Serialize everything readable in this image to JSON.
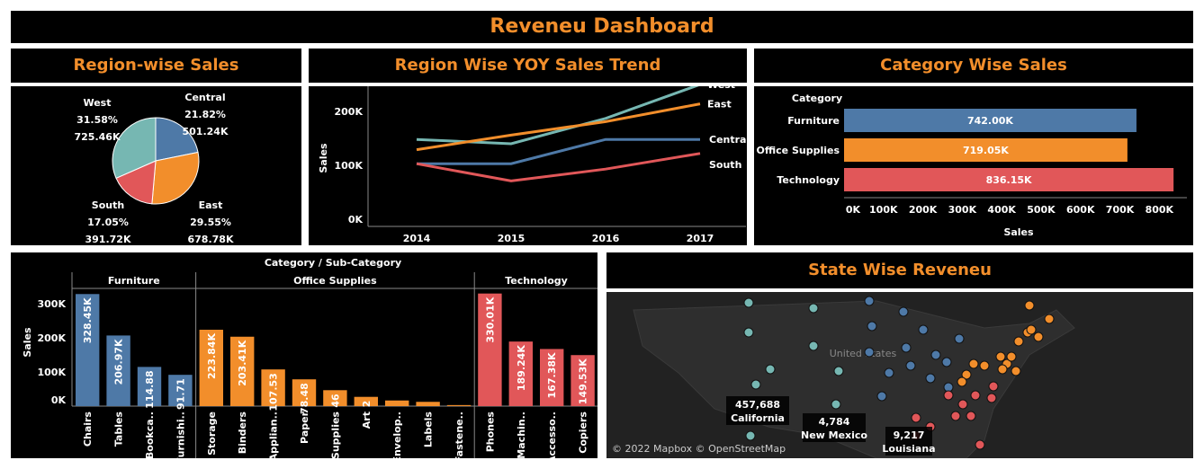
{
  "dashboard": {
    "title": "Reveneu Dashboard"
  },
  "colors": {
    "central": "#4e79a7",
    "east": "#f28e2b",
    "south": "#e15759",
    "west": "#76b7b2",
    "accent": "#f28e2b"
  },
  "region_pie": {
    "title": "Region-wise Sales",
    "chart_data": {
      "type": "pie",
      "slices": [
        {
          "name": "Central",
          "percent": "21.82%",
          "value": "501.24K",
          "share": 21.82
        },
        {
          "name": "East",
          "percent": "29.55%",
          "value": "678.78K",
          "share": 29.55
        },
        {
          "name": "South",
          "percent": "17.05%",
          "value": "391.72K",
          "share": 17.05
        },
        {
          "name": "West",
          "percent": "31.58%",
          "value": "725.46K",
          "share": 31.58
        }
      ]
    }
  },
  "yoy": {
    "title": "Region Wise YOY Sales Trend",
    "chart_data": {
      "type": "line",
      "x": [
        "2014",
        "2015",
        "2016",
        "2017"
      ],
      "ylabel": "Sales",
      "yticks": [
        "0K",
        "100K",
        "200K"
      ],
      "ylim": [
        0,
        260000
      ],
      "series": [
        {
          "name": "West",
          "values": [
            148000,
            140000,
            187000,
            250000
          ]
        },
        {
          "name": "East",
          "values": [
            129000,
            156000,
            181000,
            214000
          ]
        },
        {
          "name": "Central",
          "values": [
            103000,
            103000,
            148000,
            148000
          ]
        },
        {
          "name": "South",
          "values": [
            103000,
            71000,
            93000,
            122000
          ]
        }
      ]
    }
  },
  "category": {
    "title": "Category Wise Sales",
    "chart_data": {
      "type": "bar",
      "header": "Category",
      "categories": [
        "Furniture",
        "Office Supplies",
        "Technology"
      ],
      "values": [
        742000,
        719050,
        836150
      ],
      "labels": [
        "742.00K",
        "719.05K",
        "836.15K"
      ],
      "xlabel": "Sales",
      "xticks": [
        "0K",
        "100K",
        "200K",
        "300K",
        "400K",
        "500K",
        "600K",
        "700K",
        "800K"
      ],
      "xlim": [
        0,
        870000
      ]
    }
  },
  "subcat": {
    "chart_data": {
      "type": "bar",
      "title": "Category / Sub-Category",
      "ylabel": "Sales",
      "yticks": [
        "0K",
        "100K",
        "200K",
        "300K"
      ],
      "ylim": [
        0,
        345000
      ],
      "groups": [
        {
          "name": "Furniture",
          "items": [
            {
              "name": "Chairs",
              "value": 328450,
              "label": "328.45K"
            },
            {
              "name": "Tables",
              "value": 206970,
              "label": "206.97K"
            },
            {
              "name": "Bookca..",
              "value": 114880,
              "label": "114.88"
            },
            {
              "name": "Furnishi..",
              "value": 91710,
              "label": "91.71"
            }
          ]
        },
        {
          "name": "Office Supplies",
          "items": [
            {
              "name": "Storage",
              "value": 223840,
              "label": "223.84K"
            },
            {
              "name": "Binders",
              "value": 203410,
              "label": "203.41K"
            },
            {
              "name": "Applian..",
              "value": 107530,
              "label": "107.53"
            },
            {
              "name": "Paper",
              "value": 78480,
              "label": "78.48"
            },
            {
              "name": "Supplies",
              "value": 46670,
              "label": "46"
            },
            {
              "name": "Art",
              "value": 27120,
              "label": "2"
            },
            {
              "name": "Envelop..",
              "value": 16480,
              "label": ""
            },
            {
              "name": "Labels",
              "value": 12490,
              "label": ""
            },
            {
              "name": "Fastene..",
              "value": 3020,
              "label": ""
            }
          ]
        },
        {
          "name": "Technology",
          "items": [
            {
              "name": "Phones",
              "value": 330010,
              "label": "330.01K"
            },
            {
              "name": "Machin..",
              "value": 189240,
              "label": "189.24K"
            },
            {
              "name": "Accesso..",
              "value": 167380,
              "label": "167.38K"
            },
            {
              "name": "Copiers",
              "value": 149530,
              "label": "149.53K"
            }
          ]
        }
      ]
    }
  },
  "state": {
    "title": "State Wise Reveneu",
    "map_label": "United States",
    "attribution": "© 2022 Mapbox © OpenStreetMap",
    "tooltips": [
      {
        "value": "457,688",
        "state": "California"
      },
      {
        "value": "4,784",
        "state": "New Mexico"
      },
      {
        "value": "9,217",
        "state": "Louisiana"
      }
    ]
  }
}
